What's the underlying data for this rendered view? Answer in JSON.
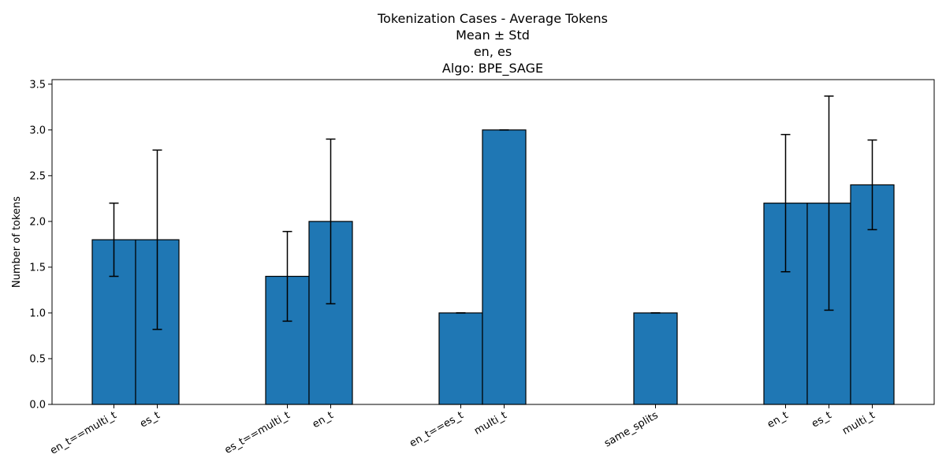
{
  "chart_data": {
    "type": "bar",
    "title_lines": [
      "Tokenization Cases - Average Tokens",
      "Mean ± Std",
      "en, es",
      "Algo: BPE_SAGE"
    ],
    "ylabel": "Number of tokens",
    "xlabel": "",
    "ylim": [
      0,
      3.55
    ],
    "yticks": [
      "0.0",
      "0.5",
      "1.0",
      "1.5",
      "2.0",
      "2.5",
      "3.0",
      "3.5"
    ],
    "bar_color": "#1f77b4",
    "grid": false,
    "groups": [
      {
        "bars": [
          {
            "label": "en_t==multi_t",
            "value": 1.8,
            "std": 0.4
          },
          {
            "label": "es_t",
            "value": 1.8,
            "std": 0.98
          }
        ]
      },
      {
        "bars": [
          {
            "label": "es_t==multi_t",
            "value": 1.4,
            "std": 0.49
          },
          {
            "label": "en_t",
            "value": 2.0,
            "std": 0.9
          }
        ]
      },
      {
        "bars": [
          {
            "label": "en_t==es_t",
            "value": 1.0,
            "std": 0.0
          },
          {
            "label": "multi_t",
            "value": 3.0,
            "std": 0.0
          }
        ]
      },
      {
        "bars": [
          {
            "label": "same_splits",
            "value": 1.0,
            "std": 0.0
          }
        ]
      },
      {
        "bars": [
          {
            "label": "en_t",
            "value": 2.2,
            "std": 0.75
          },
          {
            "label": "es_t",
            "value": 2.2,
            "std": 1.17
          },
          {
            "label": "multi_t",
            "value": 2.4,
            "std": 0.49
          }
        ]
      }
    ]
  }
}
